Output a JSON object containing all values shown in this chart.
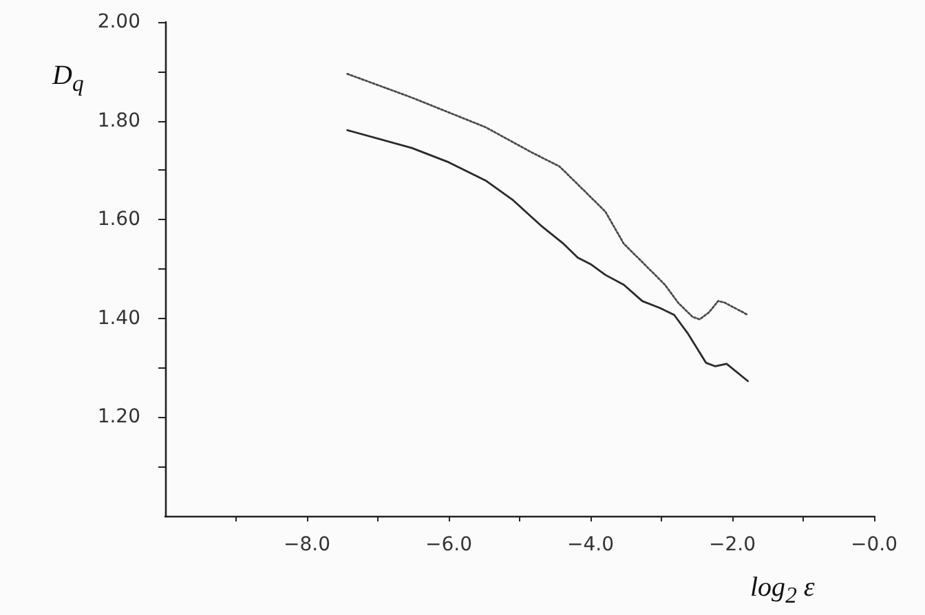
{
  "chart_data": {
    "type": "line",
    "xlabel": "log$_{2}$ ε",
    "ylabel": "D$_{q}$",
    "xlim": [
      -10,
      0
    ],
    "xticks": [
      {
        "value": -9,
        "label": null
      },
      {
        "value": -8,
        "label": "−8.0"
      },
      {
        "value": -7,
        "label": null
      },
      {
        "value": -6,
        "label": "−6.0"
      },
      {
        "value": -5,
        "label": null
      },
      {
        "value": -4,
        "label": "−4.0"
      },
      {
        "value": -3,
        "label": null
      },
      {
        "value": -2,
        "label": "−2.0"
      },
      {
        "value": -1,
        "label": null
      },
      {
        "value": 0,
        "label": "−0.0"
      }
    ],
    "ylim": [
      1.0,
      2.0
    ],
    "yticks": [
      {
        "value": 1.1,
        "label": null
      },
      {
        "value": 1.2,
        "label": "1.20"
      },
      {
        "value": 1.3,
        "label": null
      },
      {
        "value": 1.4,
        "label": "1.40"
      },
      {
        "value": 1.5,
        "label": null
      },
      {
        "value": 1.6,
        "label": "1.60"
      },
      {
        "value": 1.7,
        "label": null
      },
      {
        "value": 1.8,
        "label": "1.80"
      },
      {
        "value": 1.9,
        "label": null
      },
      {
        "value": 2.0,
        "label": "2.00"
      }
    ],
    "grid": false,
    "marker": "none",
    "series": [
      {
        "color": "#4a4a4a",
        "line_style": "dotted",
        "x": [
          -7.43,
          -6.52,
          -5.48,
          -4.83,
          -4.44,
          -4.05,
          -3.79,
          -3.53,
          -3.27,
          -2.95,
          -2.76,
          -2.56,
          -2.46,
          -2.33,
          -2.2,
          -2.11,
          -1.78
        ],
        "values": [
          1.895,
          1.847,
          1.787,
          1.736,
          1.708,
          1.653,
          1.616,
          1.551,
          1.514,
          1.468,
          1.431,
          1.403,
          1.398,
          1.412,
          1.435,
          1.432,
          1.407
        ]
      },
      {
        "color": "#2a2a2a",
        "line_style": "solid",
        "x": [
          -7.43,
          -6.52,
          -6.0,
          -5.48,
          -5.09,
          -4.7,
          -4.38,
          -4.18,
          -3.99,
          -3.79,
          -3.53,
          -3.27,
          -3.02,
          -2.82,
          -2.63,
          -2.37,
          -2.24,
          -2.08,
          -1.78
        ],
        "values": [
          1.781,
          1.745,
          1.716,
          1.679,
          1.639,
          1.588,
          1.551,
          1.523,
          1.509,
          1.488,
          1.468,
          1.435,
          1.421,
          1.407,
          1.37,
          1.31,
          1.303,
          1.308,
          1.273
        ]
      }
    ]
  }
}
